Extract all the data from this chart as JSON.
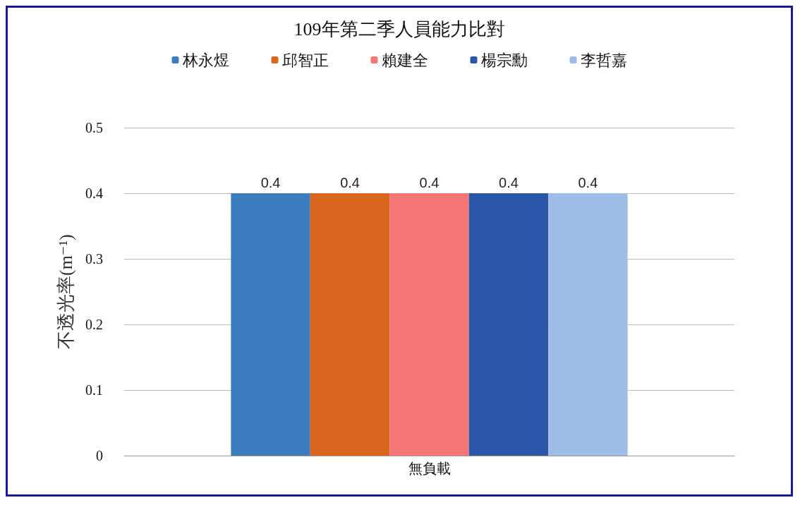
{
  "chart_data": {
    "type": "bar",
    "title": "109年第二季人員能力比對",
    "ylabel": "不透光率(m⁻¹)",
    "categories": [
      "無負載"
    ],
    "series": [
      {
        "name": "林永煜",
        "color": "#3b7dbf",
        "values": [
          0.4
        ]
      },
      {
        "name": "邱智正",
        "color": "#d9661c",
        "values": [
          0.4
        ]
      },
      {
        "name": "賴建全",
        "color": "#f47676",
        "values": [
          0.4
        ]
      },
      {
        "name": "楊宗勳",
        "color": "#2c56a8",
        "values": [
          0.4
        ]
      },
      {
        "name": "李哲嘉",
        "color": "#9dbde6",
        "values": [
          0.4
        ]
      }
    ],
    "ylim": [
      0,
      0.5
    ],
    "yticks": [
      0,
      0.1,
      0.2,
      0.3,
      0.4,
      0.5
    ],
    "grid": "y",
    "legend": "top",
    "data_labels": true
  }
}
